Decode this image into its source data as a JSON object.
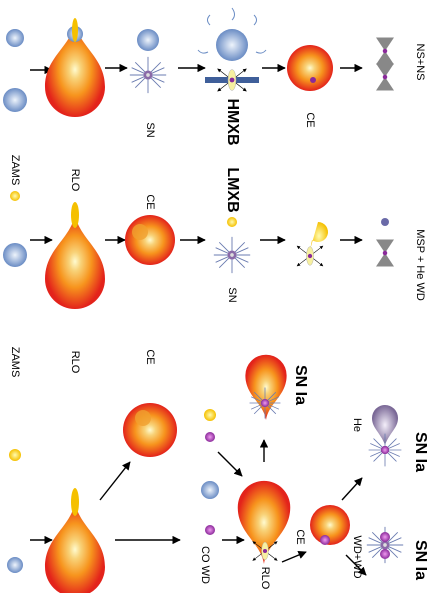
{
  "hmxb_track": {
    "labels": [
      "ZAMS",
      "RLO",
      "SN",
      "HMXB",
      "CE",
      "NS+NS"
    ]
  },
  "lmxb_track": {
    "labels": [
      "CE",
      "SN",
      "LMXB",
      "MSP + He WD"
    ]
  },
  "sn_ia_track": {
    "labels": [
      "ZAMS",
      "RLO",
      "CE",
      "CO WD",
      "RLO",
      "CE",
      "He",
      "WD+WD",
      "SN Ia",
      "SN Ia",
      "SN Ia"
    ]
  }
}
